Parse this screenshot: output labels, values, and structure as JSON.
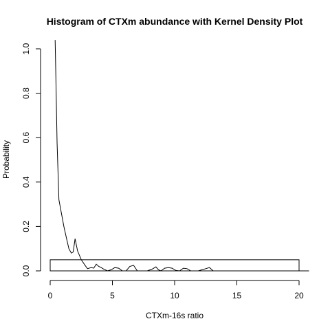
{
  "chart_data": {
    "type": "histogram",
    "title": "Histogram of CTXm abundance with Kernel Density Plot",
    "xlabel": "CTXm-16s ratio",
    "ylabel": "Probability",
    "xlim": [
      0,
      20.8
    ],
    "ylim": [
      0,
      1.04
    ],
    "x_ticks": [
      0,
      5,
      10,
      15,
      20
    ],
    "y_ticks": [
      0.0,
      0.2,
      0.4,
      0.6,
      0.8,
      1.0
    ],
    "grid": false,
    "legend": "none",
    "histogram": {
      "bins": [
        {
          "x0": 0,
          "x1": 20,
          "value": 0.05
        }
      ]
    },
    "density": {
      "name": "Kernel density",
      "x": [
        0.4,
        0.45,
        0.55,
        0.7,
        0.9,
        1.1,
        1.3,
        1.5,
        1.7,
        1.85,
        2.0,
        2.2,
        2.5,
        2.8,
        3.0,
        3.3,
        3.5,
        3.7,
        3.9,
        4.1,
        4.3,
        4.6,
        4.9,
        5.2,
        5.5,
        5.8,
        6.1,
        6.4,
        6.7,
        7.0,
        7.4,
        7.8,
        8.2,
        8.5,
        8.7,
        8.9,
        9.2,
        9.5,
        9.8,
        10.1,
        10.4,
        10.7,
        11.0,
        11.3,
        11.6,
        11.9,
        12.2,
        12.5,
        12.8,
        13.1,
        13.5,
        14.5,
        16,
        18,
        20,
        20.8
      ],
      "y": [
        1.04,
        0.9,
        0.58,
        0.32,
        0.26,
        0.2,
        0.15,
        0.1,
        0.08,
        0.085,
        0.145,
        0.09,
        0.05,
        0.025,
        0.01,
        0.015,
        0.012,
        0.03,
        0.02,
        0.015,
        0.008,
        0.0,
        0.005,
        0.015,
        0.012,
        0.0,
        0.0,
        0.02,
        0.025,
        0.0,
        0.0,
        0.0,
        0.008,
        0.018,
        0.005,
        0.0,
        0.012,
        0.015,
        0.012,
        0.002,
        0.0,
        0.012,
        0.01,
        0.0,
        0.0,
        0.0,
        0.005,
        0.01,
        0.015,
        0.0,
        0.0,
        0.0,
        0.0,
        0.0,
        0.0,
        0.0
      ]
    }
  }
}
